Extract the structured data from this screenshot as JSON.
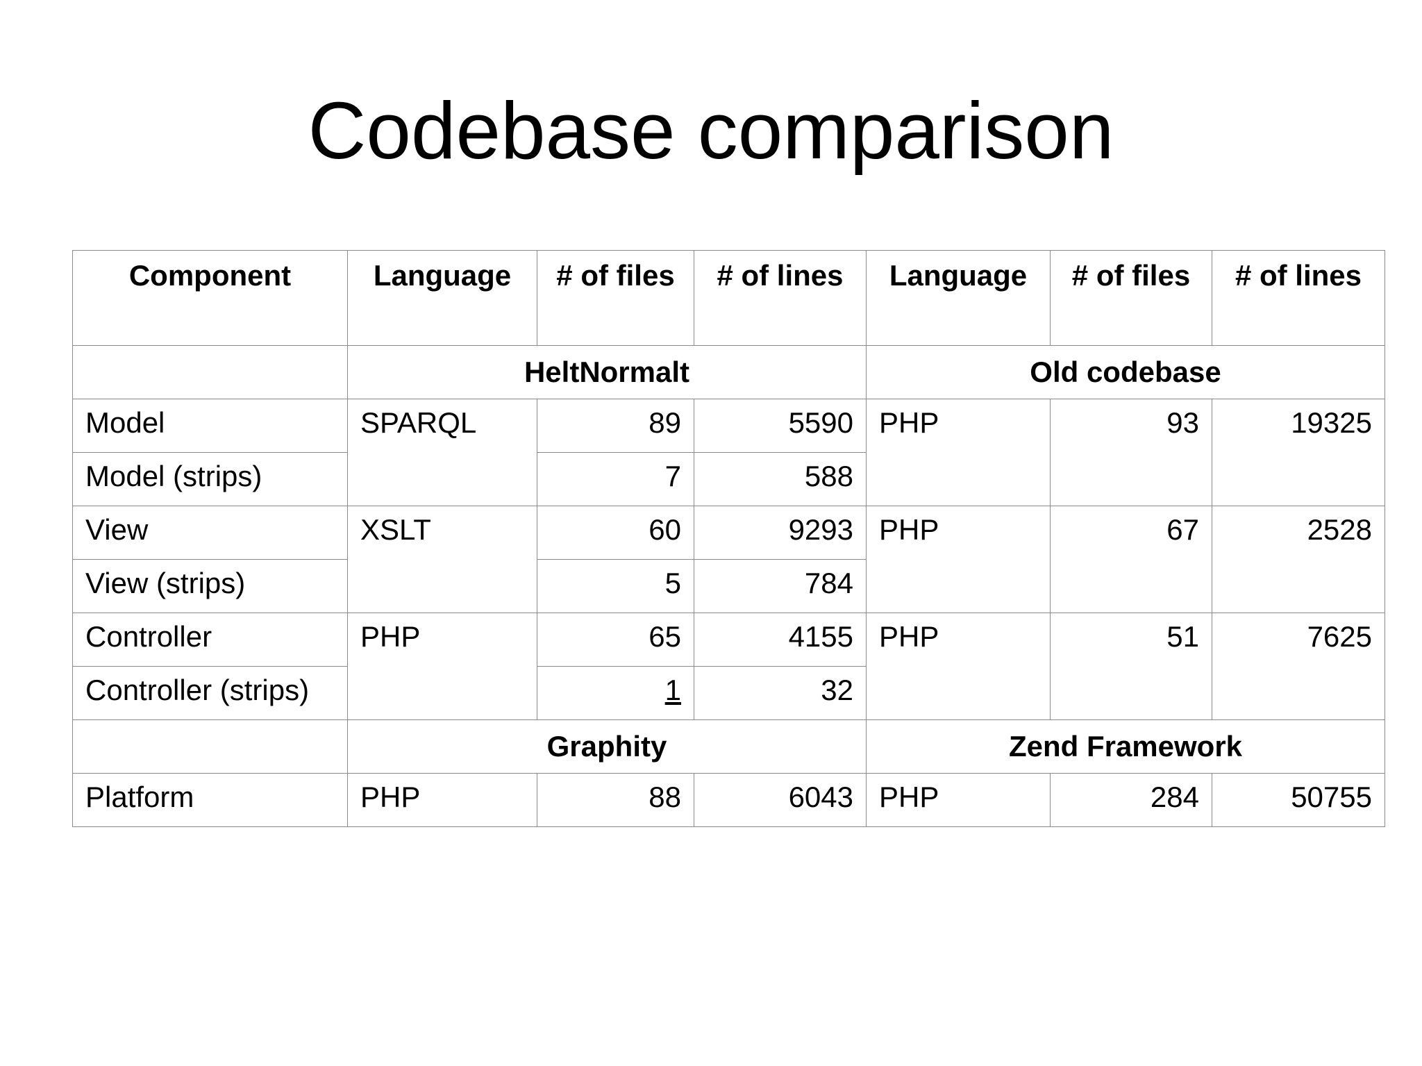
{
  "title": "Codebase comparison",
  "table": {
    "header": [
      "Component",
      "Language",
      "# of files",
      "# of lines",
      "Language",
      "# of files",
      "# of lines"
    ],
    "sections": [
      {
        "left": "HeltNormalt",
        "right": "Old codebase",
        "rows": [
          [
            "Model",
            "SPARQL",
            89,
            5590,
            "PHP",
            93,
            19325
          ],
          [
            "Model (strips)",
            7,
            588
          ],
          [
            "View",
            "XSLT",
            60,
            9293,
            "PHP",
            67,
            2528
          ],
          [
            "View (strips)",
            5,
            784
          ],
          [
            "Controller",
            "PHP",
            65,
            4155,
            "PHP",
            51,
            7625
          ],
          [
            "Controller (strips)",
            1,
            32
          ]
        ]
      },
      {
        "left": "Graphity",
        "right": "Zend Framework",
        "rows": [
          [
            "Platform",
            "PHP",
            88,
            6043,
            "PHP",
            284,
            50755
          ]
        ]
      }
    ]
  }
}
